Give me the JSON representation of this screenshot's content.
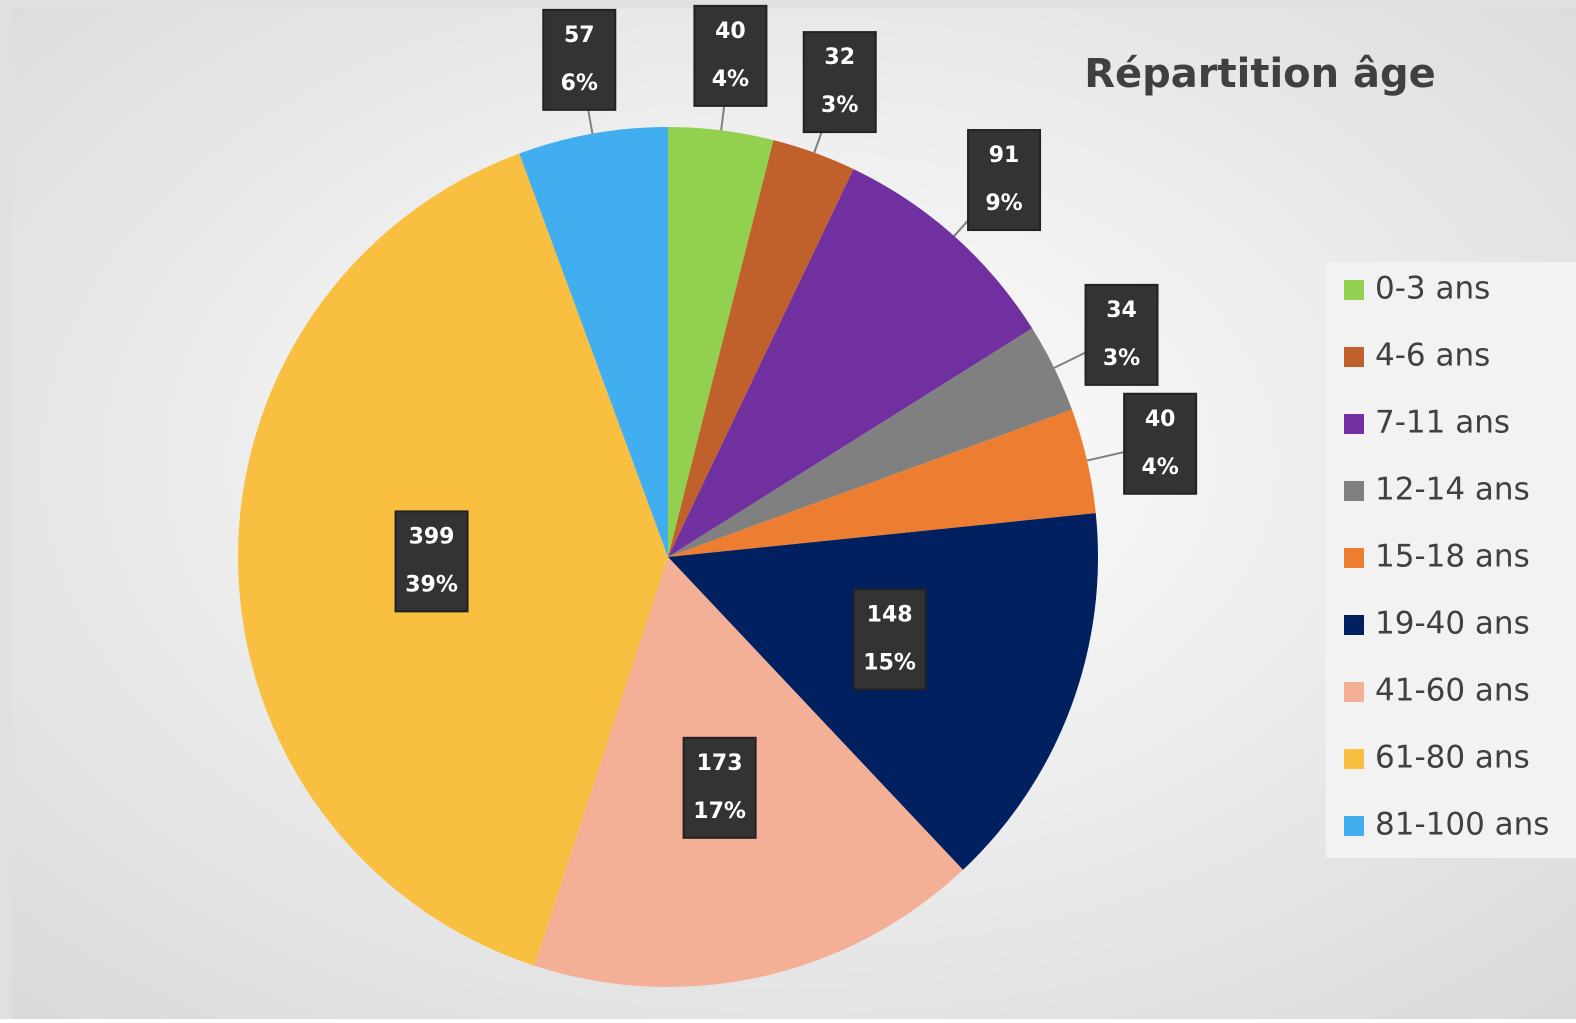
{
  "chart_data": {
    "type": "pie",
    "title": "Répartition âge",
    "categories": [
      "0-3 ans",
      "4-6 ans",
      "7-11 ans",
      "12-14 ans",
      "15-18 ans",
      "19-40 ans",
      "41-60 ans",
      "61-80 ans",
      "81-100 ans"
    ],
    "values": [
      40,
      32,
      91,
      34,
      40,
      148,
      173,
      399,
      57
    ],
    "percent_labels": [
      "4%",
      "3%",
      "9%",
      "3%",
      "4%",
      "15%",
      "17%",
      "39%",
      "6%"
    ],
    "colors": [
      "#92d050",
      "#c0602a",
      "#7030a0",
      "#808080",
      "#ed7d31",
      "#002060",
      "#f4b097",
      "#f8bf40",
      "#41aef0"
    ],
    "legend": "right"
  }
}
